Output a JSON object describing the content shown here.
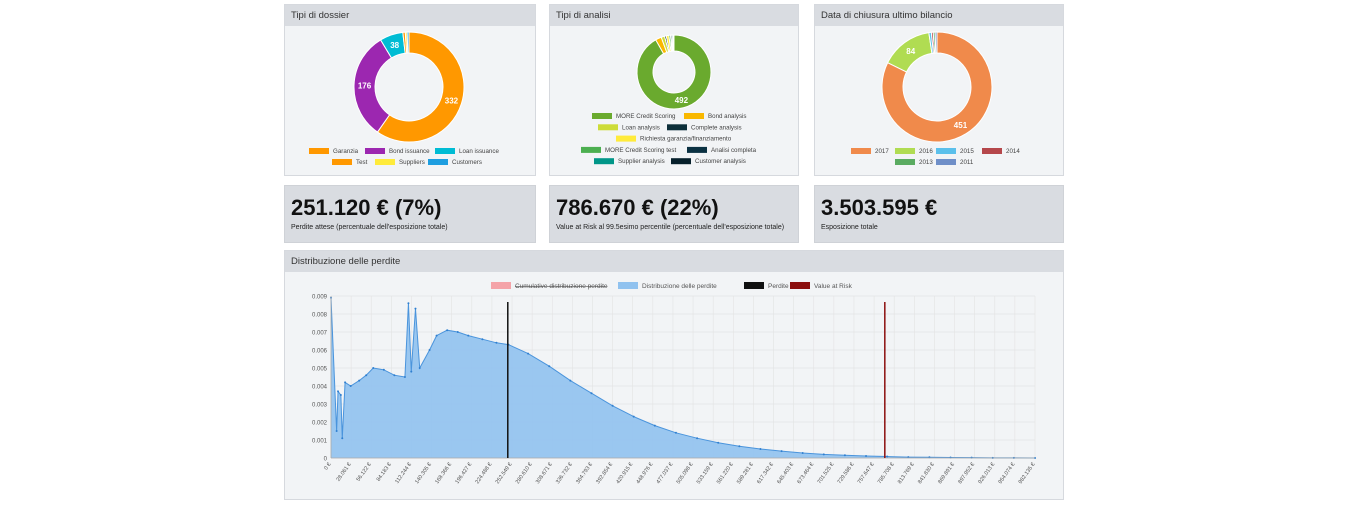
{
  "panels": {
    "dossier": {
      "title": "Tipi di dossier",
      "slices": [
        {
          "label": "Garanzia",
          "value": 332,
          "color": "#ff9800",
          "show": true
        },
        {
          "label": "Bond issuance",
          "value": 176,
          "color": "#9c27b0",
          "show": true
        },
        {
          "label": "Loan issuance",
          "value": 38,
          "color": "#00bcd4",
          "show": true
        },
        {
          "label": "Test",
          "value": 4,
          "color": "#ff9800",
          "show": false
        },
        {
          "label": "Suppliers",
          "value": 3,
          "color": "#ffeb3b",
          "show": false
        },
        {
          "label": "Customers",
          "value": 3,
          "color": "#1e9ee0",
          "show": false
        }
      ]
    },
    "analisi": {
      "title": "Tipi di analisi",
      "slices": [
        {
          "label": "MORE Credit Scoring",
          "value": 492,
          "color": "#6aaa2e",
          "show": true
        },
        {
          "label": "Bond analysis",
          "value": 14,
          "color": "#f9b800",
          "show": false
        },
        {
          "label": "Loan analysis",
          "value": 8,
          "color": "#cddc39",
          "show": false
        },
        {
          "label": "Complete analysis",
          "value": 4,
          "color": "#0d2f3a",
          "show": false
        },
        {
          "label": "Richiesta garanzia/finanziamento",
          "value": 6,
          "color": "#ffeb3b",
          "show": false
        },
        {
          "label": "MORE Credit Scoring test",
          "value": 4,
          "color": "#4caf50",
          "show": false
        },
        {
          "label": "Analisi completa",
          "value": 3,
          "color": "#0a3142",
          "show": false
        },
        {
          "label": "Supplier analysis",
          "value": 3,
          "color": "#009688",
          "show": false
        },
        {
          "label": "Customer analysis",
          "value": 2,
          "color": "#06202b",
          "show": false
        }
      ]
    },
    "bilancio": {
      "title": "Data di chiusura ultimo bilancio",
      "slices": [
        {
          "label": "2017",
          "value": 451,
          "color": "#f08a4b",
          "show": true
        },
        {
          "label": "2016",
          "value": 84,
          "color": "#b0dc52",
          "show": true
        },
        {
          "label": "2015",
          "value": 4,
          "color": "#5bc0eb",
          "show": false
        },
        {
          "label": "2014",
          "value": 3,
          "color": "#b5474b",
          "show": false
        },
        {
          "label": "2013",
          "value": 3,
          "color": "#5aab61",
          "show": false
        },
        {
          "label": "2011",
          "value": 3,
          "color": "#6f8fc8",
          "show": false
        }
      ]
    }
  },
  "kpis": {
    "perdite": {
      "value": "251.120 € (7%)",
      "label": "Perdite attese (percentuale dell'esposizione totale)"
    },
    "var": {
      "value": "786.670 € (22%)",
      "label": "Value at Risk al 99.5esimo percentile (percentuale dell'esposizione totale)"
    },
    "esposizione": {
      "value": "3.503.595 €",
      "label": "Esposizione totale"
    }
  },
  "chart_data": {
    "type": "area",
    "title": "Distribuzione delle perdite",
    "legend": [
      {
        "label": "Cumulative distribuzione perdite",
        "color": "#f4a3a8",
        "hidden": true
      },
      {
        "label": "Distribuzione delle perdite",
        "color": "#90c2ef",
        "hidden": false
      },
      {
        "label": "Perdite attese",
        "color": "#111111",
        "hidden": false
      },
      {
        "label": "Value at Risk",
        "color": "#8b0e0e",
        "hidden": false
      }
    ],
    "y_ticks": [
      "0.009",
      "0.008",
      "0.007",
      "0.006",
      "0.005",
      "0.004",
      "0.003",
      "0.002",
      "0.001",
      "0"
    ],
    "ylim": [
      0,
      0.009
    ],
    "x_ticks": [
      "0 €",
      "28.061 €",
      "56.122 €",
      "84.183 €",
      "112.244 €",
      "140.305 €",
      "168.366 €",
      "196.427 €",
      "224.488 €",
      "252.549 €",
      "280.610 €",
      "308.671 €",
      "336.732 €",
      "364.793 €",
      "392.854 €",
      "420.915 €",
      "448.976 €",
      "477.037 €",
      "505.098 €",
      "533.159 €",
      "561.220 €",
      "589.281 €",
      "617.342 €",
      "645.403 €",
      "673.464 €",
      "701.525 €",
      "729.586 €",
      "757.647 €",
      "785.708 €",
      "813.769 €",
      "841.830 €",
      "869.891 €",
      "897.952 €",
      "926.013 €",
      "954.074 €",
      "982.135 €"
    ],
    "xlim": [
      0,
      1000000
    ],
    "expected_loss": 251120,
    "value_at_risk": 786670,
    "series_points": [
      [
        0,
        0.0089
      ],
      [
        8000,
        0.0015
      ],
      [
        10000,
        0.0037
      ],
      [
        14000,
        0.0035
      ],
      [
        16000,
        0.0011
      ],
      [
        20000,
        0.0042
      ],
      [
        28000,
        0.004
      ],
      [
        40000,
        0.0043
      ],
      [
        50000,
        0.0046
      ],
      [
        60000,
        0.005
      ],
      [
        75000,
        0.0049
      ],
      [
        90000,
        0.0046
      ],
      [
        105000,
        0.0045
      ],
      [
        110000,
        0.0086
      ],
      [
        114000,
        0.0048
      ],
      [
        120000,
        0.0083
      ],
      [
        126000,
        0.005
      ],
      [
        140000,
        0.006
      ],
      [
        150000,
        0.0068
      ],
      [
        165000,
        0.0071
      ],
      [
        180000,
        0.007
      ],
      [
        195000,
        0.0068
      ],
      [
        215000,
        0.0066
      ],
      [
        235000,
        0.0064
      ],
      [
        252000,
        0.0063
      ],
      [
        280000,
        0.0058
      ],
      [
        310000,
        0.0051
      ],
      [
        340000,
        0.0043
      ],
      [
        370000,
        0.0036
      ],
      [
        400000,
        0.0029
      ],
      [
        430000,
        0.0023
      ],
      [
        460000,
        0.0018
      ],
      [
        490000,
        0.0014
      ],
      [
        520000,
        0.0011
      ],
      [
        550000,
        0.00085
      ],
      [
        580000,
        0.00065
      ],
      [
        610000,
        0.0005
      ],
      [
        640000,
        0.00038
      ],
      [
        670000,
        0.00028
      ],
      [
        700000,
        0.0002
      ],
      [
        730000,
        0.00015
      ],
      [
        760000,
        0.00011
      ],
      [
        790000,
        8e-05
      ],
      [
        820000,
        5e-05
      ],
      [
        850000,
        4e-05
      ],
      [
        880000,
        3e-05
      ],
      [
        910000,
        2e-05
      ],
      [
        940000,
        1e-05
      ],
      [
        970000,
        1e-05
      ],
      [
        1000000,
        0.0
      ]
    ]
  }
}
